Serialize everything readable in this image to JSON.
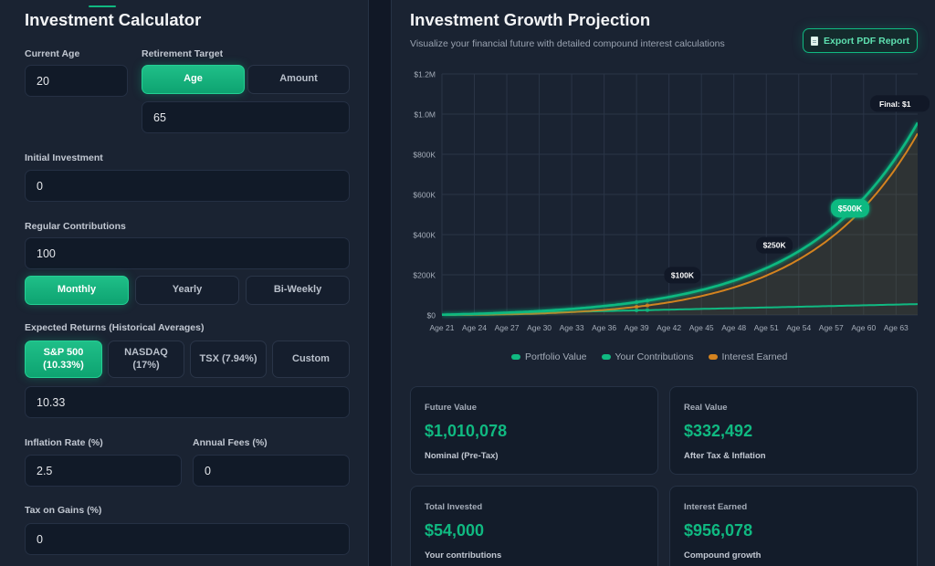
{
  "calculator": {
    "title": "Investment Calculator",
    "current_age": {
      "label": "Current Age",
      "value": "20"
    },
    "retirement": {
      "label": "Retirement Target",
      "options": [
        "Age",
        "Amount"
      ],
      "selected": "Age",
      "value": "65"
    },
    "initial": {
      "label": "Initial Investment",
      "value": "0"
    },
    "contributions": {
      "label": "Regular Contributions",
      "value": "100",
      "frequency": [
        "Monthly",
        "Yearly",
        "Bi-Weekly"
      ],
      "selected": "Monthly"
    },
    "returns": {
      "label": "Expected Returns (Historical Averages)",
      "options": [
        "S&P 500\n(10.33%)",
        "NASDAQ\n(17%)",
        "TSX (7.94%)",
        "Custom"
      ],
      "selected": "S&P 500\n(10.33%)",
      "value": "10.33"
    },
    "inflation": {
      "label": "Inflation Rate (%)",
      "value": "2.5"
    },
    "fees": {
      "label": "Annual Fees (%)",
      "value": "0"
    },
    "tax": {
      "label": "Tax on Gains (%)",
      "value": "0"
    }
  },
  "projection": {
    "title": "Investment Growth Projection",
    "subtitle": "Visualize your financial future with detailed compound interest calculations",
    "export_label": "Export PDF Report"
  },
  "colors": {
    "accent": "#10b981",
    "interest": "#d4831f"
  },
  "chart_data": {
    "type": "line",
    "x_ticks": [
      "Age 21",
      "Age 24",
      "Age 27",
      "Age 30",
      "Age 33",
      "Age 36",
      "Age 39",
      "Age 42",
      "Age 45",
      "Age 48",
      "Age 51",
      "Age 54",
      "Age 57",
      "Age 60",
      "Age 63"
    ],
    "y_ticks": [
      "$0",
      "$200K",
      "$400K",
      "$600K",
      "$800K",
      "$1.0M",
      "$1.2M"
    ],
    "ylim": [
      0,
      1200000
    ],
    "xlim": [
      21,
      65
    ],
    "series": [
      {
        "name": "Portfolio Value",
        "color": "#10b981"
      },
      {
        "name": "Your Contributions",
        "color": "#10b981"
      },
      {
        "name": "Interest Earned",
        "color": "#d4831f"
      }
    ],
    "rate": 0.1033,
    "monthly": 100,
    "start_age": 20,
    "end_age": 65,
    "milestones": [
      {
        "label": "$100K",
        "value": 100000,
        "highlight": false
      },
      {
        "label": "$250K",
        "value": 250000,
        "highlight": false
      },
      {
        "label": "$500K",
        "value": 500000,
        "highlight": true
      }
    ],
    "final_label": "Final: $1"
  },
  "cards": [
    {
      "label": "Future Value",
      "value": "$1,010,078",
      "sub": "Nominal (Pre-Tax)"
    },
    {
      "label": "Real Value",
      "value": "$332,492",
      "sub": "After Tax & Inflation"
    },
    {
      "label": "Total Invested",
      "value": "$54,000",
      "sub": "Your contributions"
    },
    {
      "label": "Interest Earned",
      "value": "$956,078",
      "sub": "Compound growth"
    }
  ]
}
